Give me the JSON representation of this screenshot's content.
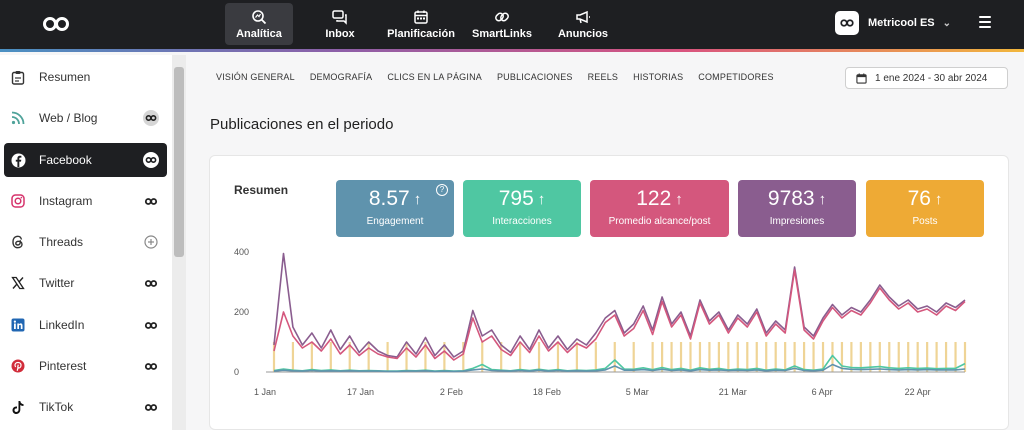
{
  "nav": {
    "items": [
      {
        "label": "Analítica",
        "icon": "analytics-icon",
        "active": true
      },
      {
        "label": "Inbox",
        "icon": "inbox-icon"
      },
      {
        "label": "Planificación",
        "icon": "calendar-icon"
      },
      {
        "label": "SmartLinks",
        "icon": "link-icon"
      },
      {
        "label": "Anuncios",
        "icon": "megaphone-icon"
      }
    ],
    "account": "Metricool ES"
  },
  "sidebar": {
    "items": [
      {
        "label": "Resumen",
        "icon": "clipboard-icon"
      },
      {
        "label": "Web / Blog",
        "icon": "rss-icon"
      },
      {
        "label": "Facebook",
        "icon": "facebook-icon",
        "active": true
      },
      {
        "label": "Instagram",
        "icon": "instagram-icon"
      },
      {
        "label": "Threads",
        "icon": "threads-icon"
      },
      {
        "label": "Twitter",
        "icon": "x-icon"
      },
      {
        "label": "LinkedIn",
        "icon": "linkedin-icon"
      },
      {
        "label": "Pinterest",
        "icon": "pinterest-icon"
      },
      {
        "label": "TikTok",
        "icon": "tiktok-icon"
      }
    ]
  },
  "tabs": [
    "VISIÓN GENERAL",
    "DEMOGRAFÍA",
    "CLICS EN LA PÁGINA",
    "PUBLICACIONES",
    "REELS",
    "HISTORIAS",
    "COMPETIDORES"
  ],
  "date_range": "1 ene 2024 - 30 abr 2024",
  "section_title": "Publicaciones en el periodo",
  "summary": {
    "title": "Resumen",
    "kpis": [
      {
        "value": "8.57",
        "label": "Engagement",
        "color": "#5f93ad",
        "help": "?"
      },
      {
        "value": "795",
        "label": "Interacciones",
        "color": "#4fc7a2"
      },
      {
        "value": "122",
        "label": "Promedio alcance/post",
        "color": "#d4577d"
      },
      {
        "value": "9783",
        "label": "Impresiones",
        "color": "#8a5d8f"
      },
      {
        "value": "76",
        "label": "Posts",
        "color": "#eeaa35"
      }
    ]
  },
  "chart_data": {
    "type": "line",
    "y_ticks": [
      "400",
      "200",
      "0"
    ],
    "ylim": [
      0,
      400
    ],
    "x_ticks": [
      "1 Jan",
      "17 Jan",
      "2 Feb",
      "18 Feb",
      "5 Mar",
      "21 Mar",
      "6 Apr",
      "22 Apr"
    ],
    "grid": false,
    "series": [
      {
        "color": "#8a5d8f",
        "values": [
          90,
          395,
          150,
          90,
          130,
          80,
          140,
          75,
          120,
          65,
          100,
          70,
          55,
          50,
          100,
          60,
          115,
          55,
          90,
          50,
          70,
          205,
          120,
          140,
          90,
          65,
          120,
          75,
          140,
          80,
          120,
          75,
          110,
          90,
          130,
          180,
          205,
          130,
          160,
          220,
          140,
          250,
          160,
          200,
          120,
          240,
          170,
          200,
          140,
          190,
          160,
          210,
          130,
          170,
          140,
          350,
          150,
          120,
          180,
          225,
          190,
          215,
          200,
          240,
          290,
          250,
          220,
          240,
          210,
          220,
          200,
          230,
          215,
          240
        ]
      },
      {
        "color": "#d4577d",
        "values": [
          70,
          200,
          120,
          80,
          100,
          70,
          110,
          60,
          90,
          55,
          80,
          60,
          50,
          45,
          80,
          50,
          90,
          45,
          70,
          40,
          60,
          180,
          100,
          120,
          75,
          55,
          100,
          65,
          120,
          70,
          100,
          65,
          95,
          80,
          110,
          165,
          190,
          120,
          145,
          205,
          125,
          235,
          150,
          190,
          110,
          230,
          160,
          190,
          130,
          180,
          150,
          200,
          120,
          160,
          130,
          340,
          140,
          110,
          170,
          215,
          180,
          205,
          190,
          230,
          280,
          240,
          210,
          230,
          200,
          210,
          190,
          220,
          205,
          235
        ]
      },
      {
        "color": "#4fc7a2",
        "values": [
          5,
          10,
          6,
          4,
          8,
          5,
          7,
          4,
          6,
          4,
          5,
          4,
          3,
          3,
          5,
          4,
          6,
          3,
          5,
          3,
          4,
          12,
          25,
          8,
          6,
          4,
          8,
          5,
          9,
          5,
          8,
          4,
          6,
          5,
          7,
          12,
          40,
          10,
          9,
          14,
          8,
          15,
          8,
          12,
          6,
          14,
          9,
          12,
          7,
          10,
          8,
          12,
          6,
          10,
          7,
          20,
          8,
          6,
          10,
          55,
          20,
          15,
          14,
          16,
          18,
          14,
          12,
          14,
          12,
          13,
          11,
          12,
          12,
          28
        ]
      },
      {
        "color": "#5f93ad",
        "values": [
          3,
          6,
          4,
          3,
          5,
          3,
          4,
          3,
          4,
          3,
          3,
          3,
          2,
          2,
          3,
          3,
          4,
          2,
          3,
          2,
          3,
          7,
          10,
          5,
          4,
          3,
          5,
          3,
          6,
          3,
          5,
          3,
          4,
          3,
          4,
          7,
          20,
          6,
          6,
          8,
          5,
          9,
          5,
          7,
          4,
          8,
          6,
          7,
          5,
          6,
          5,
          7,
          4,
          6,
          5,
          12,
          5,
          4,
          6,
          25,
          12,
          9,
          8,
          9,
          10,
          8,
          7,
          8,
          7,
          8,
          7,
          7,
          7,
          10
        ]
      }
    ],
    "posts_bar_color": "#efd496",
    "posts_bar_level": 100
  }
}
